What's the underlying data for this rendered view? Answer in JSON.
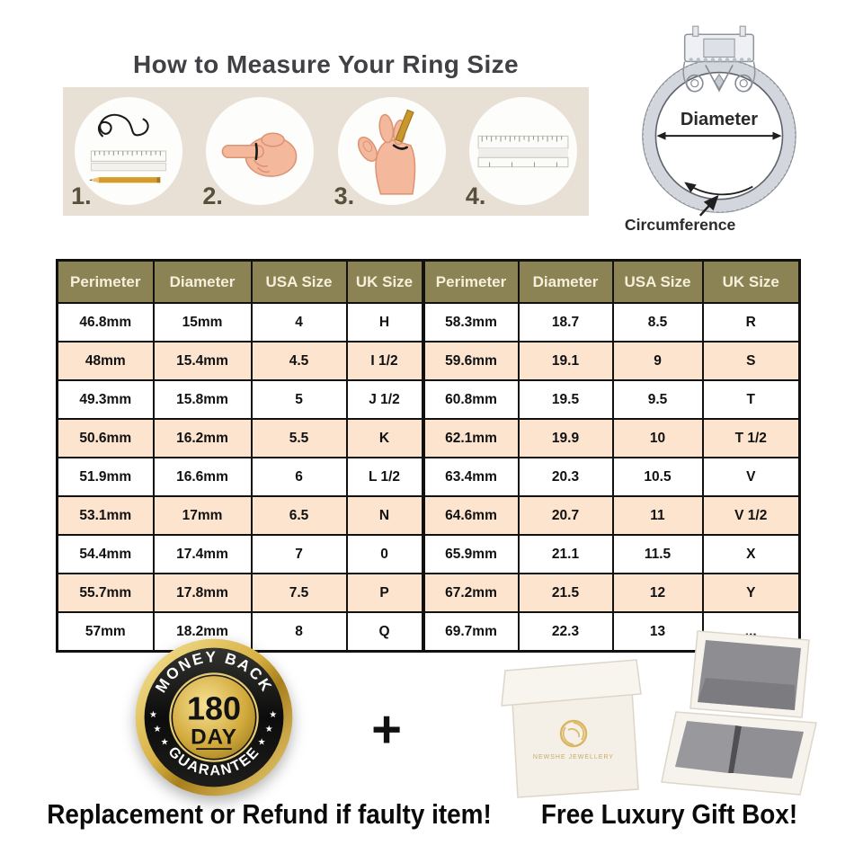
{
  "title": "How to Measure Your Ring Size",
  "steps": [
    {
      "number": "1.",
      "icon": "string-and-ruler"
    },
    {
      "number": "2.",
      "icon": "wrap-string-on-finger"
    },
    {
      "number": "3.",
      "icon": "mark-string-with-pen"
    },
    {
      "number": "4.",
      "icon": "measure-with-ruler"
    }
  ],
  "ring_diagram": {
    "diameter_label": "Diameter",
    "circumference_label": "Circumference"
  },
  "size_table": {
    "headers": [
      "Perimeter",
      "Diameter",
      "USA Size",
      "UK Size",
      "Perimeter",
      "Diameter",
      "USA Size",
      "UK Size"
    ],
    "rows": [
      [
        "46.8mm",
        "15mm",
        "4",
        "H",
        "58.3mm",
        "18.7",
        "8.5",
        "R"
      ],
      [
        "48mm",
        "15.4mm",
        "4.5",
        "I 1/2",
        "59.6mm",
        "19.1",
        "9",
        "S"
      ],
      [
        "49.3mm",
        "15.8mm",
        "5",
        "J 1/2",
        "60.8mm",
        "19.5",
        "9.5",
        "T"
      ],
      [
        "50.6mm",
        "16.2mm",
        "5.5",
        "K",
        "62.1mm",
        "19.9",
        "10",
        "T 1/2"
      ],
      [
        "51.9mm",
        "16.6mm",
        "6",
        "L 1/2",
        "63.4mm",
        "20.3",
        "10.5",
        "V"
      ],
      [
        "53.1mm",
        "17mm",
        "6.5",
        "N",
        "64.6mm",
        "20.7",
        "11",
        "V 1/2"
      ],
      [
        "54.4mm",
        "17.4mm",
        "7",
        "0",
        "65.9mm",
        "21.1",
        "11.5",
        "X"
      ],
      [
        "55.7mm",
        "17.8mm",
        "7.5",
        "P",
        "67.2mm",
        "21.5",
        "12",
        "Y"
      ],
      [
        "57mm",
        "18.2mm",
        "8",
        "Q",
        "69.7mm",
        "22.3",
        "13",
        "..."
      ]
    ]
  },
  "badge": {
    "top_text": "MONEY BACK",
    "day_count": "180",
    "day_label": "DAY",
    "bottom_text": "GUARANTEE"
  },
  "plus_label": "+",
  "gift_box": {
    "logo_text": "NEWSHE JEWELLERY"
  },
  "footer": {
    "left_text": "Replacement or Refund if faulty item!",
    "right_text": "Free Luxury Gift Box!"
  },
  "colors": {
    "strip_bg": "#e8e0d4",
    "table_header_bg": "#8b8354",
    "table_header_text": "#f5efdc",
    "table_alt_row_bg": "#fce4cf",
    "badge_gold": "#d4af37",
    "badge_black": "#0d0d0d",
    "title_text": "#414044"
  }
}
